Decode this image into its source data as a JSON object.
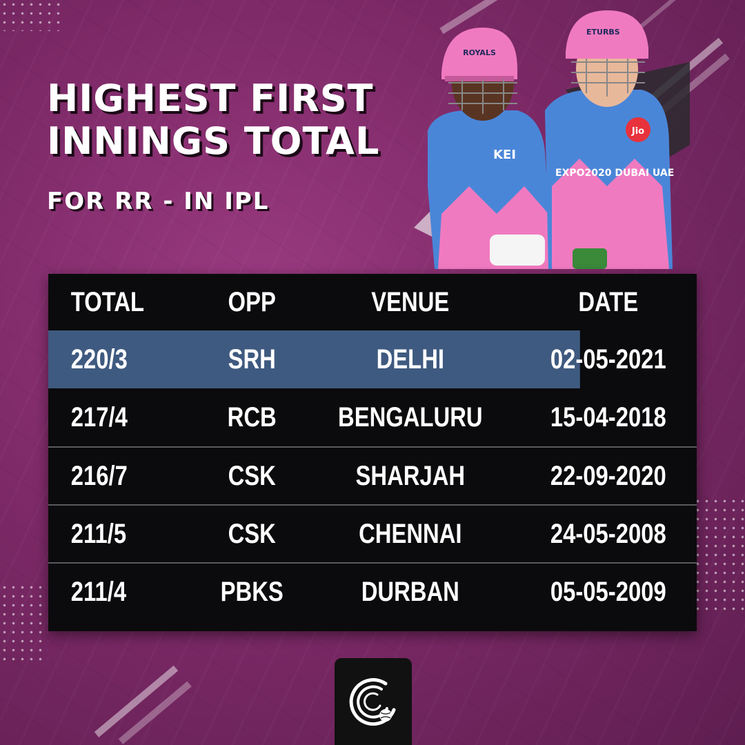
{
  "title": {
    "line1": "HIGHEST FIRST",
    "line2": "INNINGS TOTAL",
    "subtitle": "FOR RR - IN IPL"
  },
  "table": {
    "headers": [
      "TOTAL",
      "OPP",
      "VENUE",
      "DATE"
    ],
    "rows": [
      [
        "220/3",
        "SRH",
        "DELHI",
        "02-05-2021"
      ],
      [
        "217/4",
        "RCB",
        "BENGALURU",
        "15-04-2018"
      ],
      [
        "216/7",
        "CSK",
        "SHARJAH",
        "22-09-2020"
      ],
      [
        "211/5",
        "CSK",
        "CHENNAI",
        "24-05-2008"
      ],
      [
        "211/4",
        "PBKS",
        "DURBAN",
        "05-05-2009"
      ]
    ],
    "highlight_row_color": "#3f5a80"
  },
  "colors": {
    "background": "#7e2a68",
    "table_background": "#0b0b0d",
    "jersey_blue": "#4a86d8",
    "jersey_pink": "#f07ac0"
  },
  "players_image": {
    "helmet_text": "ROYALS",
    "jersey_text_1": "KEI",
    "jersey_text_2": "EXPO2020 DUBAI UAE",
    "jersey_text_3": "Jio",
    "helmet_text_2": "ETURBS"
  },
  "logo": {
    "icon": "brand-logo-icon"
  }
}
